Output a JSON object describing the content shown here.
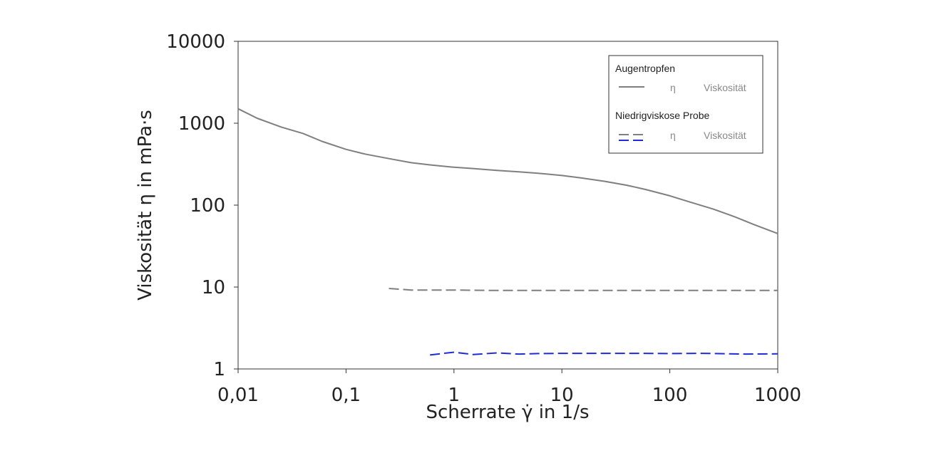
{
  "chart_data": {
    "type": "line",
    "xscale": "log",
    "yscale": "log",
    "xlim": [
      0.01,
      1000
    ],
    "ylim": [
      1,
      10000
    ],
    "xticks": [
      0.01,
      0.1,
      1,
      10,
      100,
      1000
    ],
    "xtick_labels": [
      "0,01",
      "0,1",
      "1",
      "10",
      "100",
      "1000"
    ],
    "yticks": [
      1,
      10,
      100,
      1000,
      10000
    ],
    "ytick_labels": [
      "1",
      "10",
      "100",
      "1000",
      "10000"
    ],
    "xlabel": "Scherrate γ̇ in 1/s",
    "ylabel": "Viskosität η in mPa·s",
    "grid": false,
    "legend_position": "top-right",
    "legend_groups": [
      {
        "title": "Augentropfen",
        "entries": [
          {
            "symbol": "η",
            "label": "Viskosität",
            "style": "solid",
            "colors": [
              "#7f7f7f"
            ]
          }
        ]
      },
      {
        "title": "Niedrigviskose Probe",
        "entries": [
          {
            "symbol": "η",
            "label": "Viskosität",
            "style": "dashed",
            "colors": [
              "#7f7f7f",
              "#1f2bd6"
            ]
          }
        ]
      }
    ],
    "series": [
      {
        "color": "#7f7f7f",
        "style": "solid",
        "x": [
          0.01,
          0.015,
          0.025,
          0.04,
          0.06,
          0.1,
          0.15,
          0.25,
          0.4,
          0.6,
          1,
          1.5,
          2.5,
          4,
          6,
          10,
          15,
          25,
          40,
          60,
          100,
          150,
          250,
          400,
          600,
          1000
        ],
        "y": [
          1500,
          1150,
          900,
          750,
          600,
          480,
          420,
          370,
          330,
          310,
          290,
          280,
          265,
          255,
          245,
          230,
          215,
          195,
          175,
          155,
          130,
          110,
          90,
          72,
          58,
          45
        ]
      },
      {
        "color": "#7f7f7f",
        "style": "dashed",
        "x": [
          0.25,
          0.4,
          0.6,
          1,
          2,
          5,
          10,
          50,
          100,
          500,
          1000
        ],
        "y": [
          9.6,
          9.2,
          9.2,
          9.2,
          9.1,
          9.1,
          9.1,
          9.1,
          9.1,
          9.1,
          9.1
        ]
      },
      {
        "color": "#1f2bd6",
        "style": "dashed",
        "x": [
          0.6,
          0.8,
          1,
          1.5,
          2.5,
          4,
          6,
          10,
          20,
          50,
          100,
          200,
          500,
          1000
        ],
        "y": [
          1.48,
          1.55,
          1.6,
          1.5,
          1.57,
          1.52,
          1.54,
          1.55,
          1.55,
          1.55,
          1.54,
          1.55,
          1.52,
          1.53
        ]
      }
    ]
  }
}
